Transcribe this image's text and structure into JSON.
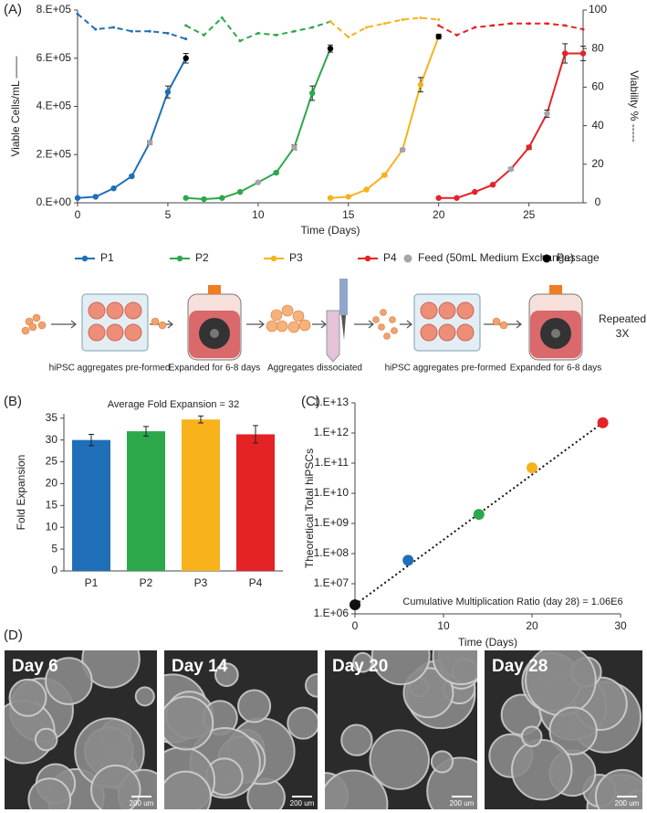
{
  "panel_labels": [
    "(A)",
    "(B)",
    "(C)",
    "(D)"
  ],
  "chart_data": [
    {
      "type": "line",
      "xlabel": "Time (Days)",
      "ylabel": "Viable Cells/mL ——",
      "y2label": "Viability % -----",
      "xlim": [
        0,
        28
      ],
      "xticks": [
        0,
        5,
        10,
        15,
        20,
        25
      ],
      "ylim": [
        0,
        800000
      ],
      "yticks": [
        {
          "value": 0,
          "label": "0.E+00"
        },
        {
          "value": 200000,
          "label": "2.E+05"
        },
        {
          "value": 400000,
          "label": "4.E+05"
        },
        {
          "value": 600000,
          "label": "6.E+05"
        },
        {
          "value": 800000,
          "label": "8.E+05"
        }
      ],
      "y2lim": [
        0,
        100
      ],
      "y2ticks": [
        0,
        20,
        40,
        60,
        80,
        100
      ],
      "series": [
        {
          "name": "P1",
          "color": "#1f6fb8",
          "x": [
            0,
            1,
            2,
            3,
            4,
            5,
            6
          ],
          "values": [
            20000,
            25000,
            60000,
            110000,
            250000,
            460000,
            600000
          ],
          "errors": [
            0,
            0,
            0,
            5000,
            8000,
            25000,
            20000
          ],
          "marker_colors": [
            "#1f6fb8",
            "#1f6fb8",
            "#1f6fb8",
            "#1f6fb8",
            "#a6a6a6",
            "#1f6fb8",
            "#000000"
          ]
        },
        {
          "name": "P2",
          "color": "#2ca84a",
          "x": [
            6,
            7,
            8,
            9,
            10,
            11,
            12,
            13,
            14
          ],
          "values": [
            20000,
            15000,
            20000,
            45000,
            85000,
            125000,
            230000,
            455000,
            640000
          ],
          "errors": [
            0,
            0,
            0,
            0,
            0,
            5000,
            10000,
            30000,
            15000
          ],
          "marker_colors": [
            "#2ca84a",
            "#2ca84a",
            "#2ca84a",
            "#2ca84a",
            "#a6a6a6",
            "#2ca84a",
            "#a6a6a6",
            "#2ca84a",
            "#000000"
          ]
        },
        {
          "name": "P3",
          "color": "#f7b21c",
          "x": [
            14,
            15,
            16,
            17,
            18,
            19,
            20
          ],
          "values": [
            20000,
            25000,
            55000,
            115000,
            220000,
            490000,
            690000
          ],
          "errors": [
            0,
            0,
            0,
            5000,
            5000,
            30000,
            10000
          ],
          "marker_colors": [
            "#f7b21c",
            "#f7b21c",
            "#f7b21c",
            "#f7b21c",
            "#a6a6a6",
            "#f7b21c",
            "#000000"
          ]
        },
        {
          "name": "P4",
          "color": "#e52226",
          "x": [
            20,
            21,
            22,
            23,
            24,
            25,
            26,
            27,
            28
          ],
          "values": [
            20000,
            20000,
            45000,
            75000,
            140000,
            230000,
            370000,
            620000,
            620000
          ],
          "errors": [
            0,
            0,
            0,
            0,
            6000,
            8000,
            15000,
            40000,
            30000
          ],
          "marker_colors": [
            "#e52226",
            "#e52226",
            "#e52226",
            "#e52226",
            "#a6a6a6",
            "#e52226",
            "#a6a6a6",
            "#e52226",
            "#e52226"
          ]
        },
        {
          "color": "#1f6fb8",
          "axis": "y2",
          "dash": true,
          "x": [
            0,
            1,
            2,
            3,
            4,
            5,
            6
          ],
          "values": [
            98,
            90,
            91,
            89,
            89,
            88,
            85
          ]
        },
        {
          "color": "#2ca84a",
          "axis": "y2",
          "dash": true,
          "x": [
            6,
            7,
            8,
            9,
            10,
            11,
            12,
            13,
            14
          ],
          "values": [
            92,
            87,
            96,
            84,
            88,
            87,
            89,
            91,
            94
          ]
        },
        {
          "color": "#f7b21c",
          "axis": "y2",
          "dash": true,
          "x": [
            14,
            15,
            16,
            17,
            18,
            19,
            20
          ],
          "values": [
            94,
            86,
            91,
            93,
            95,
            96,
            95
          ]
        },
        {
          "color": "#e52226",
          "axis": "y2",
          "dash": true,
          "x": [
            20,
            21,
            22,
            23,
            24,
            25,
            26,
            27,
            28
          ],
          "values": [
            92,
            87,
            91,
            92,
            93,
            93,
            93,
            92,
            90
          ]
        }
      ],
      "legend_extra": [
        {
          "name": "Feed (50mL Medium Exchange)",
          "color": "#a6a6a6"
        },
        {
          "name": "Passage",
          "color": "#000000"
        }
      ]
    },
    {
      "type": "bar",
      "subtitle": "Average Fold Expansion = 32",
      "ylabel": "Fold Expansion",
      "categories": [
        "P1",
        "P2",
        "P3",
        "P4"
      ],
      "values": [
        30,
        32,
        34.7,
        31.3
      ],
      "errors": [
        1.3,
        1.1,
        0.8,
        2
      ],
      "colors": [
        "#1f6fb8",
        "#2ca84a",
        "#f7b21c",
        "#e52226"
      ],
      "ylim": [
        0,
        36
      ],
      "yticks": [
        0,
        5,
        10,
        15,
        20,
        25,
        30,
        35
      ]
    },
    {
      "type": "scatter",
      "xlabel": "Time (Days)",
      "ylabel": "Theoretical Total hiPSCs",
      "annotation": "Cumulative Multiplication Ratio (day 28) = 1.06E6",
      "x": [
        0,
        6,
        14,
        20,
        28
      ],
      "values": [
        2000000,
        60000000,
        2000000000,
        70000000000,
        2200000000000
      ],
      "colors": [
        "#111111",
        "#1f6fb8",
        "#2ca84a",
        "#f7b21c",
        "#e52226"
      ],
      "trend": true,
      "ylog": true,
      "xlim": [
        0,
        30
      ],
      "xticks": [
        0,
        10,
        20,
        30
      ],
      "ylim": [
        1000000,
        10000000000000
      ],
      "yticks": [
        {
          "value": 1000000,
          "label": "1.E+06"
        },
        {
          "value": 10000000,
          "label": "1.E+07"
        },
        {
          "value": 100000000,
          "label": "1.E+08"
        },
        {
          "value": 1000000000,
          "label": "1.E+09"
        },
        {
          "value": 10000000000,
          "label": "1.E+10"
        },
        {
          "value": 100000000000,
          "label": "1.E+11"
        },
        {
          "value": 1000000000000,
          "label": "1.E+12"
        },
        {
          "value": 10000000000000,
          "label": "1.E+13"
        }
      ]
    }
  ],
  "diagram": {
    "steps": [
      "hiPSC aggregates pre-formed",
      "Expanded for 6-8 days",
      "Aggregates dissociated",
      "hiPSC aggregates pre-formed",
      "Expanded for 6-8 days"
    ],
    "repeat": [
      "Repeated",
      "3X"
    ]
  },
  "micrographs": [
    {
      "label": "Day 6",
      "scale_bar": "200 um"
    },
    {
      "label": "Day 14",
      "scale_bar": "200 um"
    },
    {
      "label": "Day 20",
      "scale_bar": "200 um"
    },
    {
      "label": "Day 28",
      "scale_bar": "200 um"
    }
  ]
}
